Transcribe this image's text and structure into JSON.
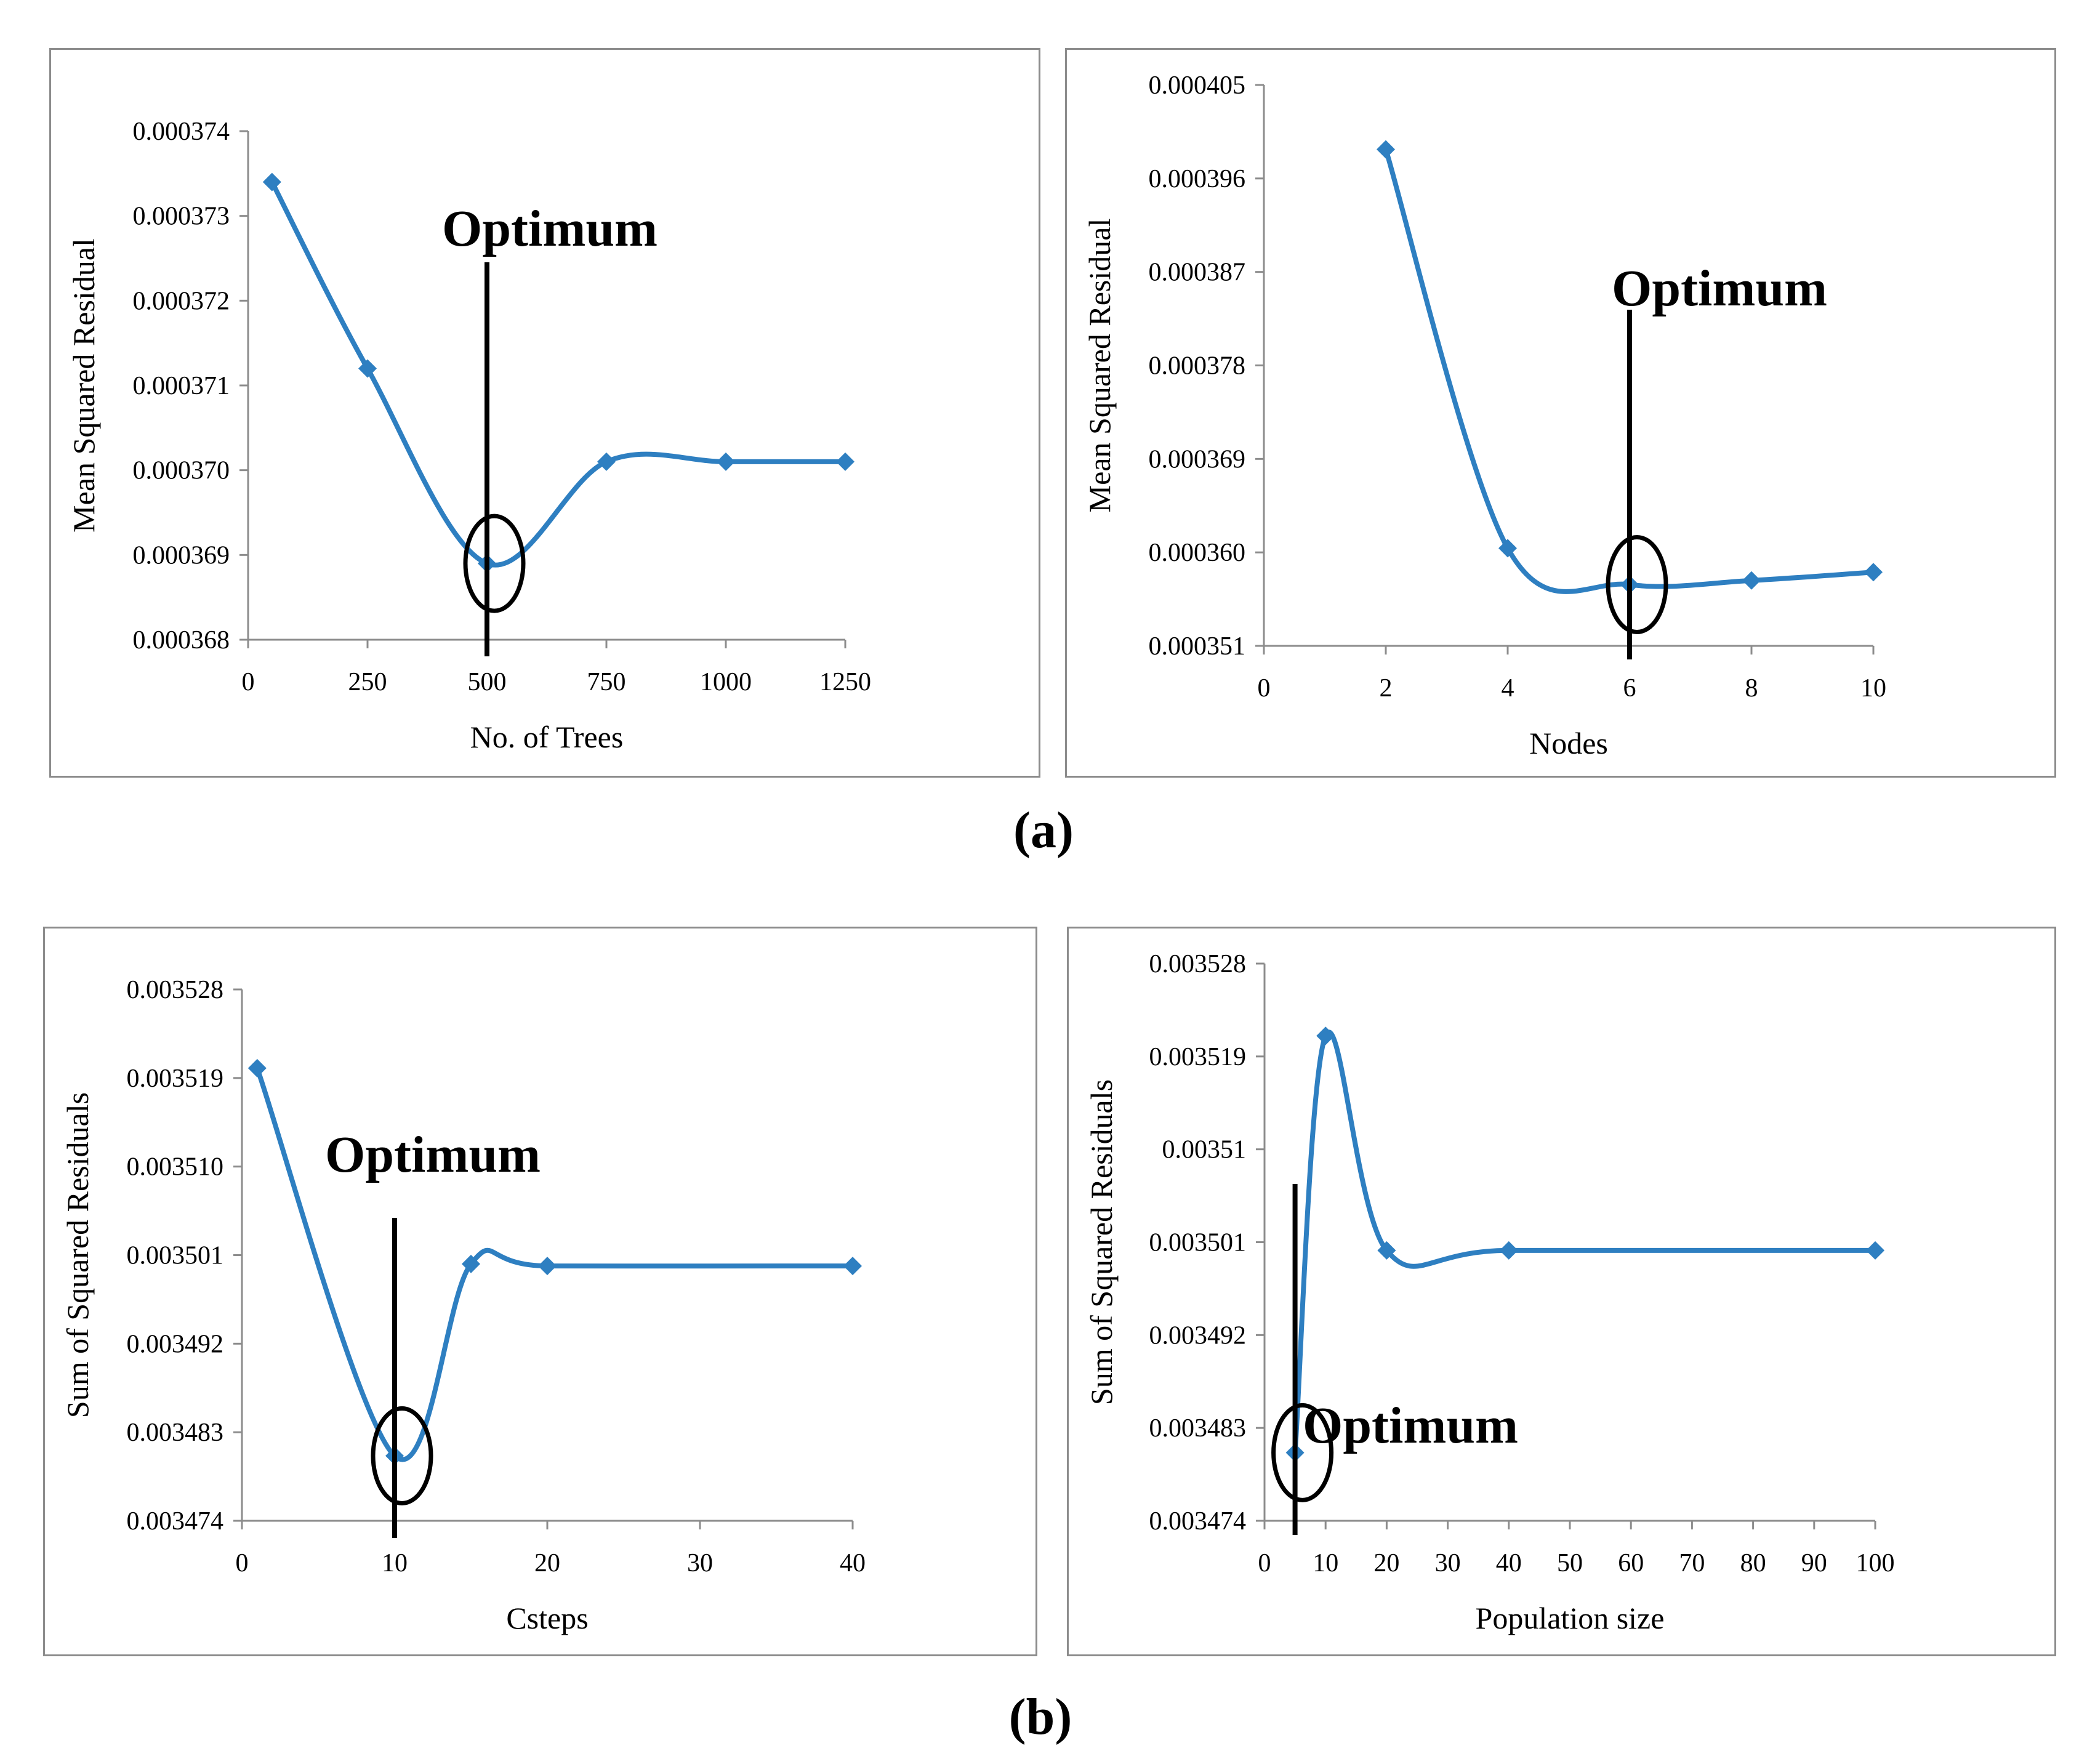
{
  "figure": {
    "panel_labels": [
      "(a)",
      "(b)"
    ],
    "line_color": "#2e7fc1",
    "optimum_color": "#000000"
  },
  "chart_data": [
    {
      "type": "line",
      "xlabel": "No. of Trees",
      "ylabel": "Mean Squared Residual",
      "x": [
        50,
        250,
        500,
        750,
        1000,
        1250
      ],
      "values": [
        0.0003734,
        0.0003712,
        0.0003689,
        0.0003701,
        0.0003701,
        0.0003701
      ],
      "xlim": [
        0,
        1250
      ],
      "ylim": [
        0.000368,
        0.000374
      ],
      "xticks": [
        "0",
        "250",
        "500",
        "750",
        "1000",
        "1250"
      ],
      "yticks": [
        "0.000368",
        "0.000369",
        "0.000370",
        "0.000371",
        "0.000372",
        "0.000373",
        "0.000374"
      ],
      "annotation": {
        "text": "Optimum",
        "x": 500,
        "value": 0.0003689
      }
    },
    {
      "type": "line",
      "xlabel": "Nodes",
      "ylabel": "Mean Squared Residual",
      "x": [
        2,
        4,
        6,
        8,
        10
      ],
      "values": [
        0.0003988,
        0.0003604,
        0.0003569,
        0.0003573,
        0.0003581
      ],
      "xlim": [
        0,
        10
      ],
      "ylim": [
        0.000351,
        0.000405
      ],
      "xticks": [
        "0",
        "2",
        "4",
        "6",
        "8",
        "10"
      ],
      "yticks": [
        "0.000351",
        "0.000360",
        "0.000369",
        "0.000378",
        "0.000387",
        "0.000396",
        "0.000405"
      ],
      "annotation": {
        "text": "Optimum",
        "x": 6,
        "value": 0.0003569
      }
    },
    {
      "type": "line",
      "xlabel": "Csteps",
      "ylabel": "Sum of Squared Residuals",
      "x": [
        1,
        10,
        15,
        20,
        40
      ],
      "values": [
        0.00352,
        0.0034806,
        0.0035001,
        0.0034999,
        0.0034999
      ],
      "xlim": [
        0,
        40
      ],
      "ylim": [
        0.003474,
        0.003528
      ],
      "xticks": [
        "0",
        "10",
        "20",
        "30",
        "40"
      ],
      "yticks": [
        "0.003474",
        "0.003483",
        "0.003492",
        "0.003501",
        "0.003510",
        "0.003519",
        "0.003528"
      ],
      "annotation": {
        "text": "Optimum",
        "x": 10,
        "value": 0.0034806
      }
    },
    {
      "type": "line",
      "xlabel": "Population size",
      "ylabel": "Sum of Squared Residuals",
      "x": [
        5,
        10,
        20,
        40,
        100
      ],
      "values": [
        0.0034806,
        0.003521,
        0.0035002,
        0.0035002,
        0.0035002
      ],
      "xlim": [
        0,
        100
      ],
      "ylim": [
        0.003474,
        0.003528
      ],
      "xticks": [
        "0",
        "10",
        "20",
        "30",
        "40",
        "50",
        "60",
        "70",
        "80",
        "90",
        "100"
      ],
      "yticks": [
        "0.003474",
        "0.003483",
        "0.003492",
        "0.003501",
        "0.00351",
        "0.003519",
        "0.003528"
      ],
      "annotation": {
        "text": "Optimum",
        "x": 5,
        "value": 0.0034806
      }
    }
  ]
}
